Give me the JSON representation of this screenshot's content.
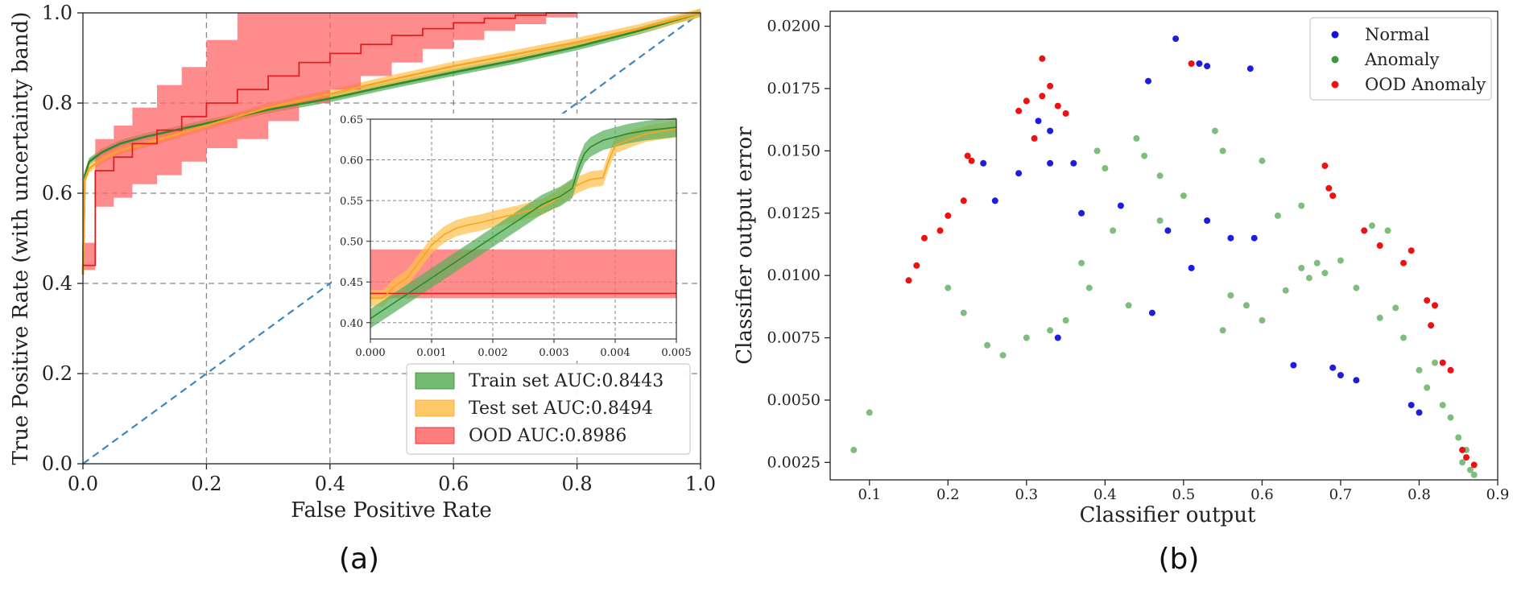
{
  "colors": {
    "train": "#2e8b2e",
    "train_band": "#5aaf5a",
    "test": "#f5a623",
    "test_band": "#ffc04d",
    "ood": "#e02020",
    "ood_band": "#ff6666",
    "diagonal": "#3b87c0",
    "grid": "#888888",
    "normal": "#1010e0",
    "anomaly": "#3a9a3a",
    "ood_anomaly": "#ee1111"
  },
  "chart_data": [
    {
      "id": "a",
      "type": "line",
      "caption": "(a)",
      "title": "",
      "xlabel": "False Positive Rate",
      "ylabel": "True Positive Rate (with uncertainty band)",
      "xlim": [
        0,
        1
      ],
      "ylim": [
        0,
        1
      ],
      "xticks": [
        "0.0",
        "0.2",
        "0.4",
        "0.6",
        "0.8",
        "1.0"
      ],
      "yticks": [
        "0.0",
        "0.2",
        "0.4",
        "0.6",
        "0.8",
        "1.0"
      ],
      "grid": true,
      "legend_position": "bottom-right",
      "legend": [
        "Train set AUC:0.8443",
        "Test set AUC:0.8494",
        "OOD AUC:0.8986"
      ],
      "diagonal": [
        [
          0,
          0
        ],
        [
          1,
          1
        ]
      ],
      "series": [
        {
          "name": "Train set AUC:0.8443",
          "x": [
            0,
            0.003,
            0.01,
            0.03,
            0.06,
            0.1,
            0.15,
            0.2,
            0.25,
            0.3,
            0.4,
            0.5,
            0.6,
            0.7,
            0.8,
            0.9,
            1.0
          ],
          "y": [
            0.42,
            0.64,
            0.67,
            0.69,
            0.71,
            0.725,
            0.74,
            0.755,
            0.77,
            0.785,
            0.81,
            0.84,
            0.868,
            0.895,
            0.925,
            0.96,
            1.0
          ],
          "band": 0.008
        },
        {
          "name": "Test set AUC:0.8494",
          "x": [
            0,
            0.003,
            0.01,
            0.03,
            0.06,
            0.1,
            0.15,
            0.2,
            0.25,
            0.3,
            0.4,
            0.5,
            0.6,
            0.7,
            0.8,
            0.9,
            1.0
          ],
          "y": [
            0.42,
            0.63,
            0.655,
            0.675,
            0.695,
            0.71,
            0.73,
            0.75,
            0.77,
            0.79,
            0.82,
            0.852,
            0.882,
            0.908,
            0.935,
            0.965,
            1.0
          ],
          "band": 0.01
        },
        {
          "name": "OOD AUC:0.8986",
          "x": [
            0,
            0.02,
            0.02,
            0.05,
            0.05,
            0.08,
            0.08,
            0.12,
            0.12,
            0.16,
            0.16,
            0.2,
            0.2,
            0.25,
            0.25,
            0.3,
            0.3,
            0.35,
            0.35,
            0.4,
            0.4,
            0.45,
            0.45,
            0.5,
            0.5,
            0.55,
            0.55,
            0.6,
            0.6,
            0.65,
            0.65,
            0.7,
            0.7,
            0.75,
            0.75,
            0.8
          ],
          "y": [
            0.44,
            0.44,
            0.65,
            0.65,
            0.68,
            0.68,
            0.71,
            0.71,
            0.74,
            0.74,
            0.77,
            0.77,
            0.8,
            0.8,
            0.83,
            0.83,
            0.86,
            0.86,
            0.89,
            0.89,
            0.91,
            0.91,
            0.93,
            0.93,
            0.95,
            0.95,
            0.965,
            0.965,
            0.978,
            0.978,
            0.988,
            0.988,
            0.995,
            0.995,
            1.0,
            1.0
          ],
          "band_lower": [
            0.43,
            0.43,
            0.57,
            0.57,
            0.59,
            0.59,
            0.62,
            0.62,
            0.64,
            0.64,
            0.67,
            0.67,
            0.7,
            0.7,
            0.72,
            0.72,
            0.76,
            0.76,
            0.8,
            0.8,
            0.83,
            0.83,
            0.86,
            0.86,
            0.89,
            0.89,
            0.92,
            0.92,
            0.94,
            0.94,
            0.96,
            0.96,
            0.975,
            0.975,
            0.99,
            0.99
          ],
          "band_upper": [
            0.49,
            0.49,
            0.72,
            0.72,
            0.75,
            0.75,
            0.79,
            0.79,
            0.84,
            0.84,
            0.88,
            0.88,
            0.94,
            0.94,
            1.0,
            1.0,
            1.0,
            1.0,
            1.0,
            1.0,
            1.0,
            1.0,
            1.0,
            1.0,
            1.0,
            1.0,
            1.0,
            1.0,
            1.0,
            1.0,
            1.0,
            1.0,
            1.0,
            1.0,
            1.0,
            1.0
          ]
        }
      ],
      "inset": {
        "xlim": [
          0,
          0.005
        ],
        "ylim": [
          0.38,
          0.65
        ],
        "xticks": [
          "0.000",
          "0.001",
          "0.002",
          "0.003",
          "0.004",
          "0.005"
        ],
        "yticks": [
          "0.40",
          "0.45",
          "0.50",
          "0.55",
          "0.60",
          "0.65"
        ],
        "series": [
          {
            "name": "Train set AUC:0.8443",
            "x": [
              0,
              0.0002,
              0.0004,
              0.0006,
              0.0008,
              0.001,
              0.0012,
              0.0014,
              0.0016,
              0.0018,
              0.002,
              0.0022,
              0.0024,
              0.0026,
              0.0028,
              0.003,
              0.0031,
              0.0033,
              0.0034,
              0.0035,
              0.0036,
              0.0038,
              0.004,
              0.0042,
              0.0045,
              0.005
            ],
            "y": [
              0.405,
              0.415,
              0.425,
              0.435,
              0.445,
              0.455,
              0.465,
              0.475,
              0.485,
              0.495,
              0.505,
              0.515,
              0.525,
              0.535,
              0.545,
              0.552,
              0.555,
              0.565,
              0.59,
              0.608,
              0.616,
              0.624,
              0.628,
              0.632,
              0.636,
              0.64
            ],
            "band": 0.012
          },
          {
            "name": "Test set AUC:0.8494",
            "x": [
              0,
              0.0002,
              0.0004,
              0.0006,
              0.0008,
              0.001,
              0.0012,
              0.0014,
              0.0016,
              0.0018,
              0.002,
              0.0024,
              0.0028,
              0.003,
              0.0032,
              0.0034,
              0.0036,
              0.0038,
              0.0039,
              0.004,
              0.0042,
              0.0045,
              0.005
            ],
            "y": [
              0.43,
              0.43,
              0.445,
              0.455,
              0.475,
              0.495,
              0.508,
              0.516,
              0.52,
              0.523,
              0.527,
              0.534,
              0.542,
              0.55,
              0.56,
              0.57,
              0.576,
              0.578,
              0.6,
              0.618,
              0.624,
              0.632,
              0.638
            ],
            "band": 0.01
          },
          {
            "name": "OOD AUC:0.8986",
            "x": [
              0,
              0.005
            ],
            "y": [
              0.436,
              0.436
            ],
            "band_lower": [
              0.43,
              0.43
            ],
            "band_upper": [
              0.49,
              0.49
            ]
          }
        ]
      }
    },
    {
      "id": "b",
      "type": "scatter",
      "caption": "(b)",
      "title": "",
      "xlabel": "Classifier output",
      "ylabel": "Classifier output error",
      "xlim": [
        0.05,
        0.9
      ],
      "ylim": [
        0.0018,
        0.0206
      ],
      "xticks": [
        "0.1",
        "0.2",
        "0.3",
        "0.4",
        "0.5",
        "0.6",
        "0.7",
        "0.8",
        "0.9"
      ],
      "yticks": [
        "0.0025",
        "0.0050",
        "0.0075",
        "0.0100",
        "0.0125",
        "0.0150",
        "0.0175",
        "0.0200"
      ],
      "grid": false,
      "legend_position": "top-right",
      "legend": [
        "Normal",
        "Anomaly",
        "OOD Anomaly"
      ],
      "series": [
        {
          "name": "Normal",
          "points": [
            [
              0.49,
              0.0195
            ],
            [
              0.455,
              0.0178
            ],
            [
              0.52,
              0.0185
            ],
            [
              0.585,
              0.0183
            ],
            [
              0.53,
              0.0184
            ],
            [
              0.315,
              0.0162
            ],
            [
              0.33,
              0.0158
            ],
            [
              0.29,
              0.0141
            ],
            [
              0.36,
              0.0145
            ],
            [
              0.26,
              0.013
            ],
            [
              0.42,
              0.0128
            ],
            [
              0.53,
              0.0122
            ],
            [
              0.56,
              0.0115
            ],
            [
              0.51,
              0.0103
            ],
            [
              0.33,
              0.0145
            ],
            [
              0.245,
              0.0145
            ],
            [
              0.37,
              0.0125
            ],
            [
              0.48,
              0.0118
            ],
            [
              0.34,
              0.0075
            ],
            [
              0.46,
              0.0085
            ],
            [
              0.69,
              0.0063
            ],
            [
              0.64,
              0.0064
            ],
            [
              0.7,
              0.006
            ],
            [
              0.72,
              0.0058
            ],
            [
              0.79,
              0.0048
            ],
            [
              0.8,
              0.0045
            ],
            [
              0.59,
              0.0115
            ]
          ]
        },
        {
          "name": "Anomaly",
          "points": [
            [
              0.54,
              0.0158
            ],
            [
              0.44,
              0.0155
            ],
            [
              0.55,
              0.015
            ],
            [
              0.39,
              0.015
            ],
            [
              0.45,
              0.0148
            ],
            [
              0.4,
              0.0143
            ],
            [
              0.6,
              0.0146
            ],
            [
              0.47,
              0.014
            ],
            [
              0.65,
              0.0128
            ],
            [
              0.62,
              0.0124
            ],
            [
              0.74,
              0.012
            ],
            [
              0.76,
              0.0118
            ],
            [
              0.33,
              0.0078
            ],
            [
              0.3,
              0.0075
            ],
            [
              0.35,
              0.0082
            ],
            [
              0.55,
              0.0078
            ],
            [
              0.6,
              0.0082
            ],
            [
              0.43,
              0.0088
            ],
            [
              0.25,
              0.0072
            ],
            [
              0.27,
              0.0068
            ],
            [
              0.65,
              0.0103
            ],
            [
              0.67,
              0.0105
            ],
            [
              0.68,
              0.0101
            ],
            [
              0.66,
              0.0099
            ],
            [
              0.7,
              0.0106
            ],
            [
              0.72,
              0.0095
            ],
            [
              0.75,
              0.0083
            ],
            [
              0.77,
              0.0087
            ],
            [
              0.78,
              0.0075
            ],
            [
              0.82,
              0.0065
            ],
            [
              0.84,
              0.0043
            ],
            [
              0.85,
              0.0035
            ],
            [
              0.86,
              0.003
            ],
            [
              0.855,
              0.0025
            ],
            [
              0.865,
              0.0022
            ],
            [
              0.87,
              0.002
            ],
            [
              0.83,
              0.0048
            ],
            [
              0.81,
              0.0055
            ],
            [
              0.8,
              0.0062
            ],
            [
              0.5,
              0.0132
            ],
            [
              0.47,
              0.0122
            ],
            [
              0.41,
              0.0118
            ],
            [
              0.37,
              0.0105
            ],
            [
              0.38,
              0.0095
            ],
            [
              0.56,
              0.0092
            ],
            [
              0.58,
              0.0088
            ],
            [
              0.63,
              0.0094
            ],
            [
              0.2,
              0.0095
            ],
            [
              0.22,
              0.0085
            ],
            [
              0.1,
              0.0045
            ],
            [
              0.08,
              0.003
            ]
          ]
        },
        {
          "name": "OOD Anomaly",
          "points": [
            [
              0.32,
              0.0187
            ],
            [
              0.33,
              0.0176
            ],
            [
              0.3,
              0.017
            ],
            [
              0.32,
              0.0172
            ],
            [
              0.29,
              0.0166
            ],
            [
              0.34,
              0.0168
            ],
            [
              0.31,
              0.0155
            ],
            [
              0.35,
              0.0165
            ],
            [
              0.225,
              0.0148
            ],
            [
              0.23,
              0.0146
            ],
            [
              0.22,
              0.013
            ],
            [
              0.2,
              0.0124
            ],
            [
              0.19,
              0.0118
            ],
            [
              0.17,
              0.0115
            ],
            [
              0.16,
              0.0104
            ],
            [
              0.15,
              0.0098
            ],
            [
              0.51,
              0.0185
            ],
            [
              0.68,
              0.0144
            ],
            [
              0.685,
              0.0135
            ],
            [
              0.69,
              0.0132
            ],
            [
              0.73,
              0.0118
            ],
            [
              0.75,
              0.0112
            ],
            [
              0.78,
              0.0105
            ],
            [
              0.79,
              0.011
            ],
            [
              0.81,
              0.009
            ],
            [
              0.82,
              0.0088
            ],
            [
              0.815,
              0.008
            ],
            [
              0.83,
              0.0065
            ],
            [
              0.84,
              0.0062
            ],
            [
              0.855,
              0.003
            ],
            [
              0.86,
              0.0027
            ],
            [
              0.87,
              0.0024
            ]
          ]
        }
      ]
    }
  ]
}
